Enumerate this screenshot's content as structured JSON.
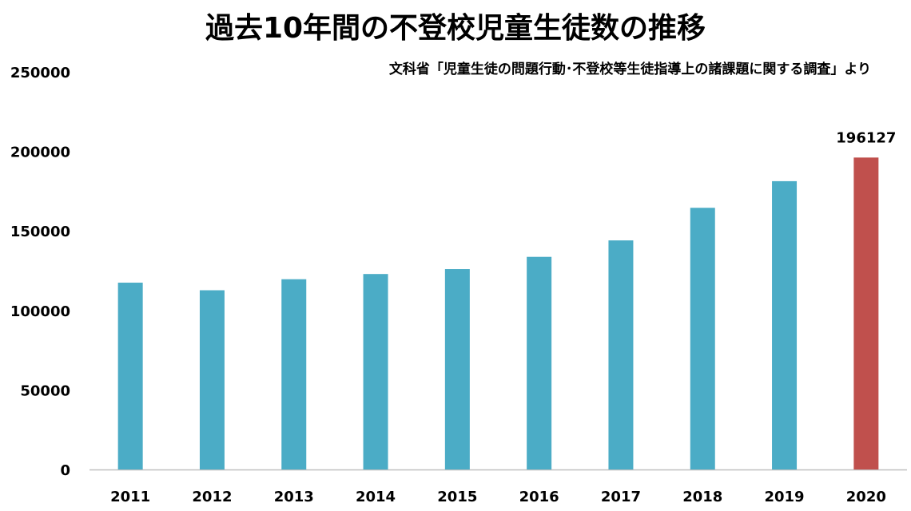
{
  "chart_data": {
    "type": "bar",
    "title": "過去10年間の不登校児童生徒数の推移",
    "subtitle": "文科省「児童生徒の問題行動･不登校等生徒指導上の諸課題に関する調査」より",
    "xlabel": "",
    "ylabel": "",
    "categories": [
      "2011",
      "2012",
      "2013",
      "2014",
      "2015",
      "2016",
      "2017",
      "2018",
      "2019",
      "2020"
    ],
    "values": [
      117458,
      112689,
      119617,
      122897,
      125991,
      133683,
      144031,
      164528,
      181272,
      196127
    ],
    "ylim": [
      0,
      250000
    ],
    "yticks": [
      0,
      50000,
      100000,
      150000,
      200000,
      250000
    ],
    "grid": false,
    "legend": "none",
    "bar_color": "#4bacc6",
    "highlight_color": "#c0504d",
    "highlight_index": 9,
    "data_labels": [
      {
        "category": "2020",
        "text": "196127"
      }
    ]
  }
}
